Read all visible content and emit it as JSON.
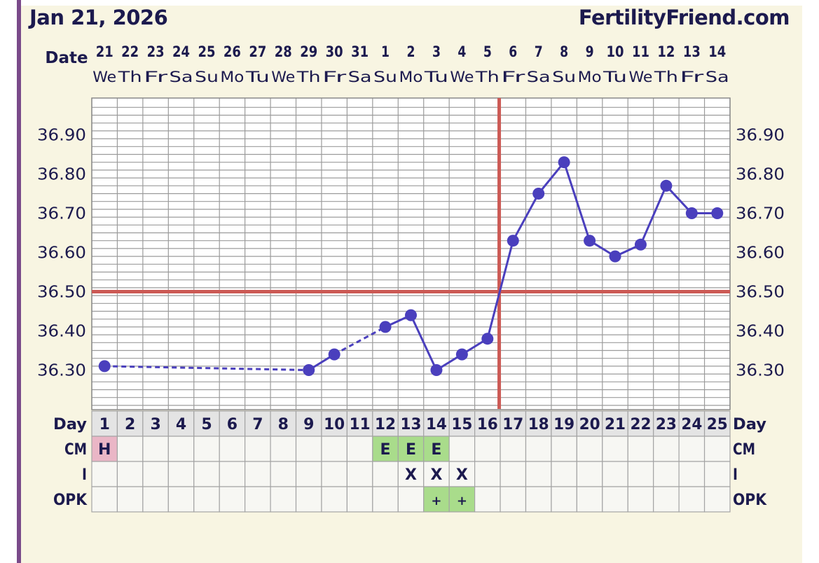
{
  "header": {
    "date": "Jan 21, 2026",
    "site": "FertilityFriend.com"
  },
  "colors": {
    "temperature_line": "#4a3fbd",
    "coverline": "#cc5a55",
    "ovulation_line": "#cc5a55",
    "cm_h": "#eab6c6",
    "cm_e": "#a9dc8b",
    "opk_positive": "#a9dc8b",
    "grid": "#9b9b9b",
    "text": "#1c1a4e"
  },
  "chart_data": {
    "type": "line",
    "row_labels": {
      "date": "Date",
      "day": "Day",
      "cm": "CM",
      "intercourse": "I",
      "opk": "OPK"
    },
    "dates": [
      "21",
      "22",
      "23",
      "24",
      "25",
      "26",
      "27",
      "28",
      "29",
      "30",
      "31",
      "1",
      "2",
      "3",
      "4",
      "5",
      "6",
      "7",
      "8",
      "9",
      "10",
      "11",
      "12",
      "13",
      "14"
    ],
    "weekdays": [
      "We",
      "Th",
      "Fr",
      "Sa",
      "Su",
      "Mo",
      "Tu",
      "We",
      "Th",
      "Fr",
      "Sa",
      "Su",
      "Mo",
      "Tu",
      "We",
      "Th",
      "Fr",
      "Sa",
      "Su",
      "Mo",
      "Tu",
      "We",
      "Th",
      "Fr",
      "Sa"
    ],
    "days": [
      "1",
      "2",
      "3",
      "4",
      "5",
      "6",
      "7",
      "8",
      "9",
      "10",
      "11",
      "12",
      "13",
      "14",
      "15",
      "16",
      "17",
      "18",
      "19",
      "20",
      "21",
      "22",
      "23",
      "24",
      "25"
    ],
    "y_ticks": [
      "36.90",
      "36.80",
      "36.70",
      "36.60",
      "36.50",
      "36.40",
      "36.30"
    ],
    "ylim": [
      36.21,
      37.0
    ],
    "temperatures": [
      {
        "day": 1,
        "value": 36.31
      },
      {
        "day": 9,
        "value": 36.3
      },
      {
        "day": 10,
        "value": 36.34
      },
      {
        "day": 12,
        "value": 36.41
      },
      {
        "day": 13,
        "value": 36.44
      },
      {
        "day": 14,
        "value": 36.3
      },
      {
        "day": 15,
        "value": 36.34
      },
      {
        "day": 16,
        "value": 36.38
      },
      {
        "day": 17,
        "value": 36.63
      },
      {
        "day": 18,
        "value": 36.75
      },
      {
        "day": 19,
        "value": 36.83
      },
      {
        "day": 20,
        "value": 36.63
      },
      {
        "day": 21,
        "value": 36.59
      },
      {
        "day": 22,
        "value": 36.62
      },
      {
        "day": 23,
        "value": 36.77
      },
      {
        "day": 24,
        "value": 36.7
      },
      {
        "day": 25,
        "value": 36.7
      }
    ],
    "dashed_segments": [
      [
        1,
        9
      ],
      [
        10,
        12
      ]
    ],
    "coverline": 36.5,
    "ovulation_day": 16,
    "cm": [
      {
        "day": 1,
        "value": "H"
      },
      {
        "day": 12,
        "value": "E"
      },
      {
        "day": 13,
        "value": "E"
      },
      {
        "day": 14,
        "value": "E"
      }
    ],
    "intercourse": [
      {
        "day": 13,
        "value": "X"
      },
      {
        "day": 14,
        "value": "X"
      },
      {
        "day": 15,
        "value": "X"
      }
    ],
    "opk": [
      {
        "day": 14,
        "value": "+"
      },
      {
        "day": 15,
        "value": "+"
      }
    ],
    "grid": true
  }
}
